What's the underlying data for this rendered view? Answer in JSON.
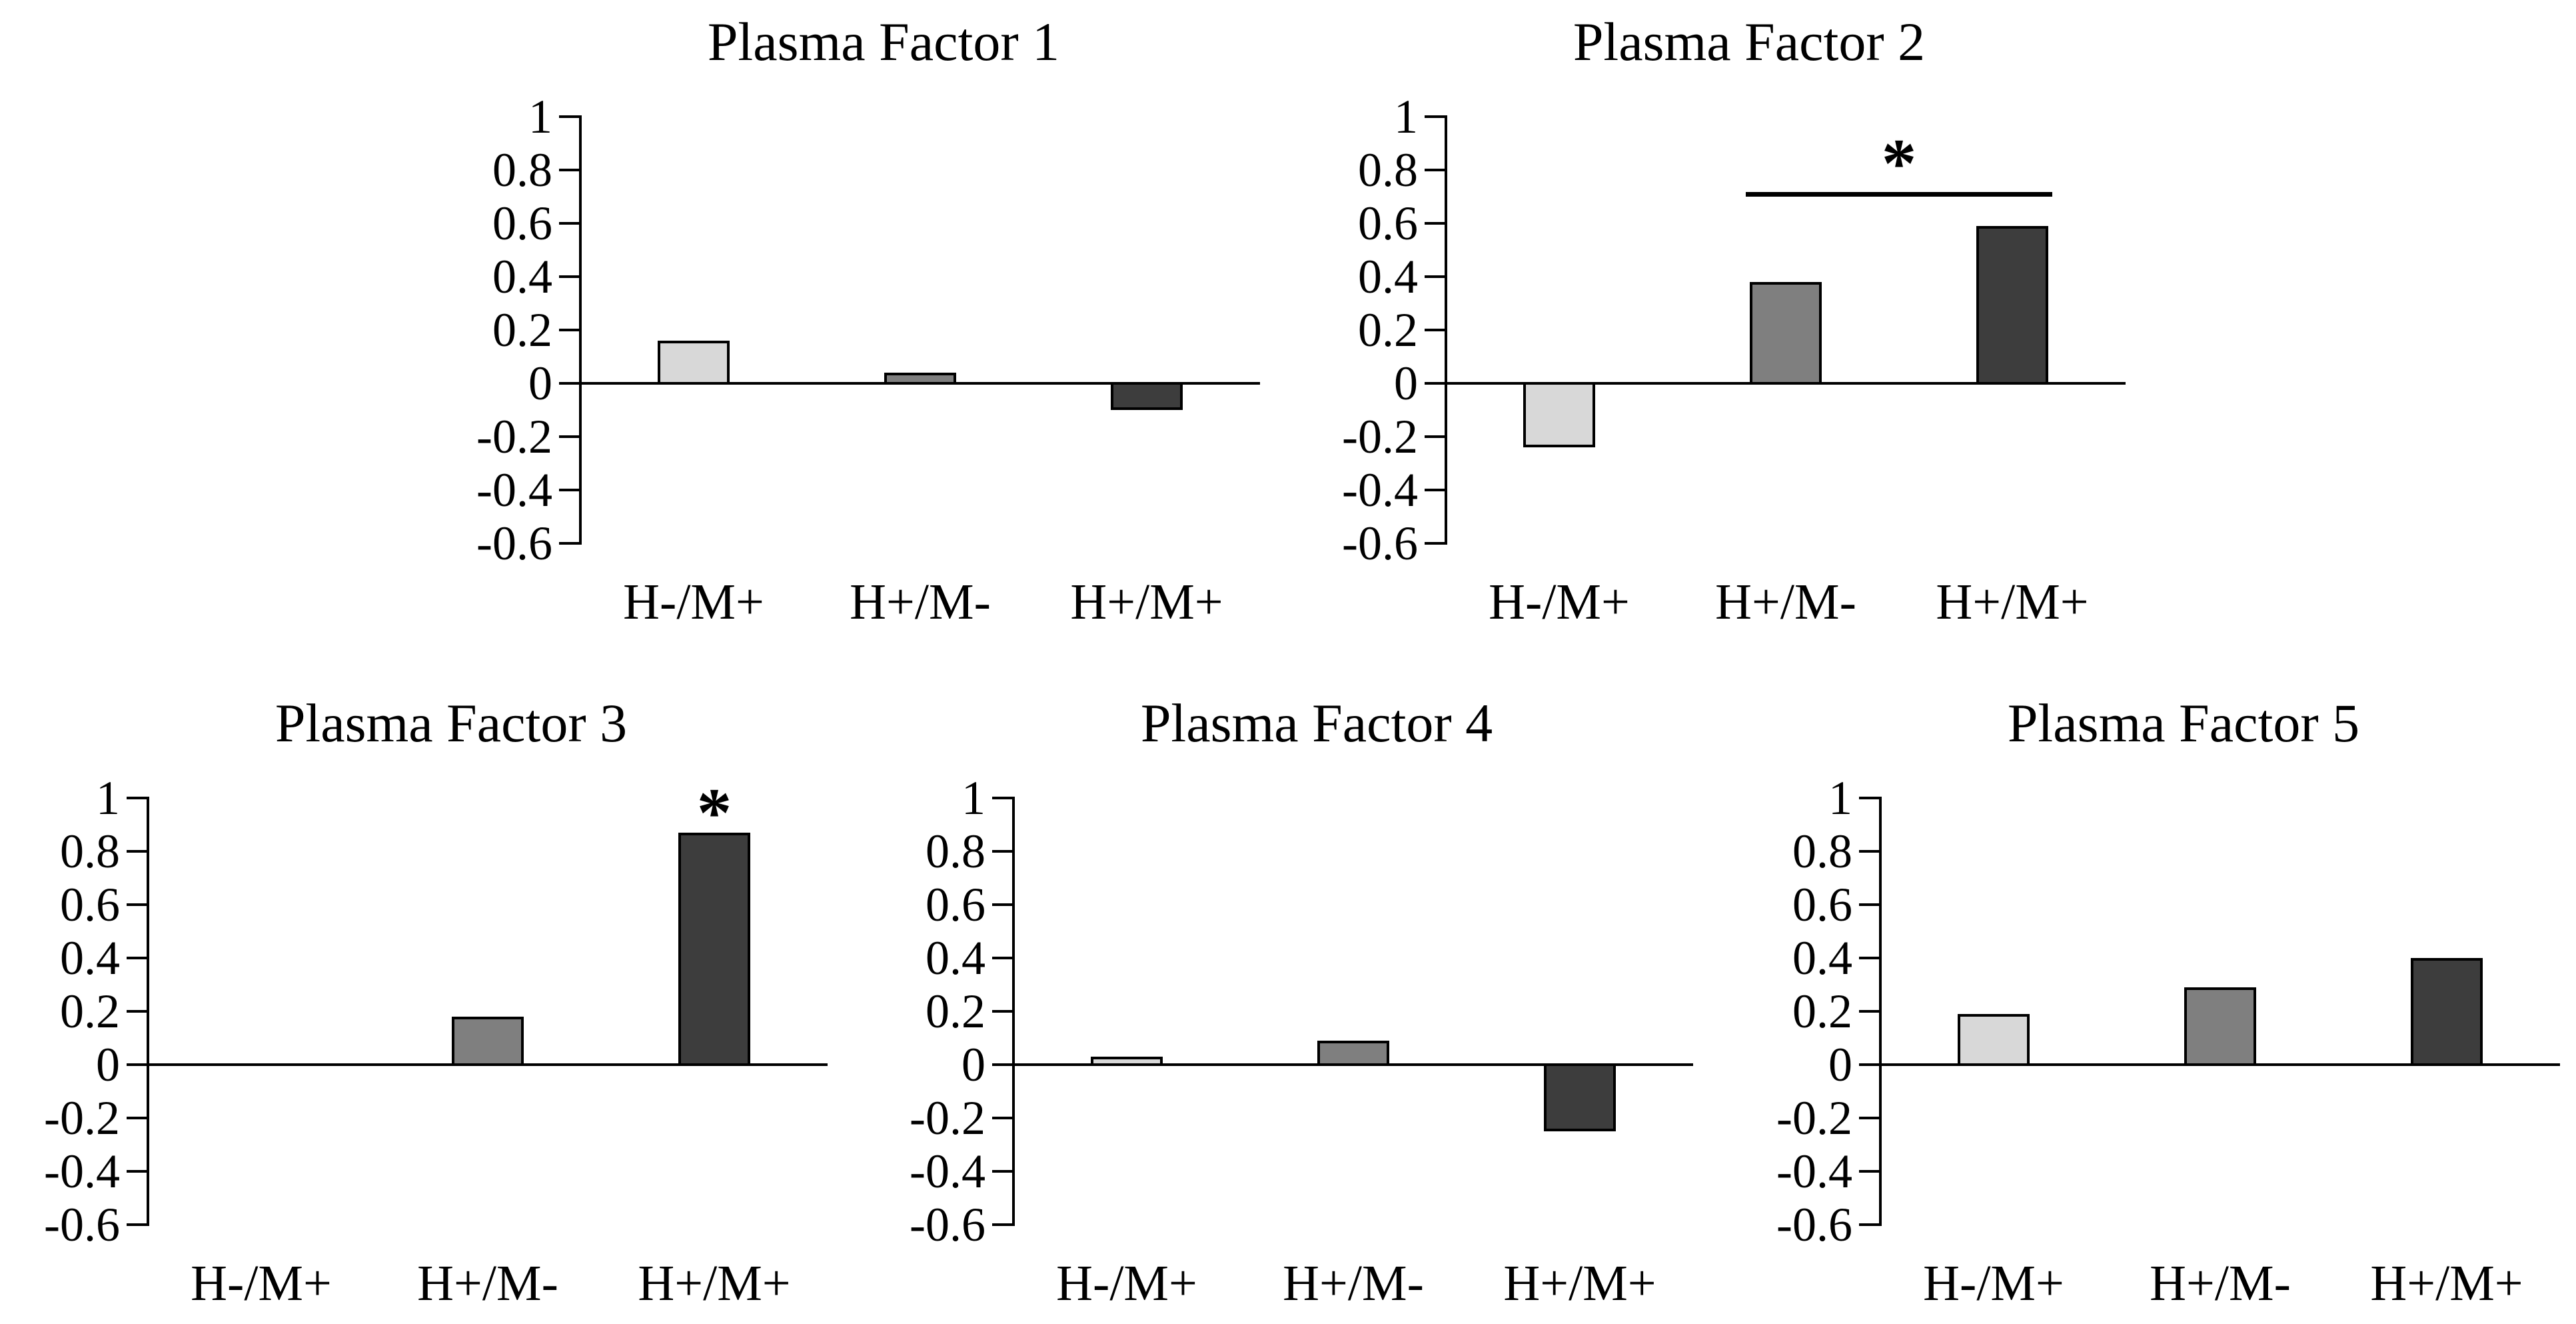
{
  "page": {
    "background": "#ffffff",
    "text_color": "#000000",
    "axis_color": "#000000"
  },
  "chart_data": [
    {
      "type": "bar",
      "title": "Plasma Factor 1",
      "categories": [
        "H-/M+",
        "H+/M-",
        "H+/M+"
      ],
      "values": [
        0.16,
        0.04,
        -0.1
      ],
      "bar_colors": [
        "#d8d8d8",
        "#7f7f7f",
        "#3d3d3d"
      ],
      "ylim": [
        -0.6,
        1
      ],
      "yticks": [
        "1",
        "0.8",
        "0.6",
        "0.4",
        "0.2",
        "0",
        "-0.2",
        "-0.4",
        "-0.6"
      ],
      "grid": false,
      "legend": null,
      "significance": null
    },
    {
      "type": "bar",
      "title": "Plasma Factor 2",
      "categories": [
        "H-/M+",
        "H+/M-",
        "H+/M+"
      ],
      "values": [
        -0.24,
        0.38,
        0.59
      ],
      "bar_colors": [
        "#d8d8d8",
        "#7f7f7f",
        "#3d3d3d"
      ],
      "ylim": [
        -0.6,
        1
      ],
      "yticks": [
        "1",
        "0.8",
        "0.6",
        "0.4",
        "0.2",
        "0",
        "-0.2",
        "-0.4",
        "-0.6"
      ],
      "grid": false,
      "legend": null,
      "significance": {
        "style": "line-with-star",
        "label": "*",
        "between_categories": [
          "H+/M-",
          "H+/M+"
        ],
        "line_value": 0.71,
        "star_value": 0.85
      }
    },
    {
      "type": "bar",
      "title": "Plasma Factor 3",
      "categories": [
        "H-/M+",
        "H+/M-",
        "H+/M+"
      ],
      "values": [
        0,
        0.18,
        0.87
      ],
      "bar_colors": [
        "#d8d8d8",
        "#7f7f7f",
        "#3d3d3d"
      ],
      "ylim": [
        -0.6,
        1
      ],
      "yticks": [
        "1",
        "0.8",
        "0.6",
        "0.4",
        "0.2",
        "0",
        "-0.2",
        "-0.4",
        "-0.6"
      ],
      "grid": false,
      "legend": null,
      "significance": {
        "style": "star-above-bar",
        "label": "*",
        "category": "H+/M+",
        "star_value": 0.97
      }
    },
    {
      "type": "bar",
      "title": "Plasma Factor 4",
      "categories": [
        "H-/M+",
        "H+/M-",
        "H+/M+"
      ],
      "values": [
        0.03,
        0.09,
        -0.25
      ],
      "bar_colors": [
        "#d8d8d8",
        "#7f7f7f",
        "#3d3d3d"
      ],
      "ylim": [
        -0.6,
        1
      ],
      "yticks": [
        "1",
        "0.8",
        "0.6",
        "0.4",
        "0.2",
        "0",
        "-0.2",
        "-0.4",
        "-0.6"
      ],
      "grid": false,
      "legend": null,
      "significance": null
    },
    {
      "type": "bar",
      "title": "Plasma Factor 5",
      "categories": [
        "H-/M+",
        "H+/M-",
        "H+/M+"
      ],
      "values": [
        0.19,
        0.29,
        0.4
      ],
      "bar_colors": [
        "#d8d8d8",
        "#7f7f7f",
        "#3d3d3d"
      ],
      "ylim": [
        -0.6,
        1
      ],
      "yticks": [
        "1",
        "0.8",
        "0.6",
        "0.4",
        "0.2",
        "0",
        "-0.2",
        "-0.4",
        "-0.6"
      ],
      "grid": false,
      "legend": null,
      "significance": null
    }
  ]
}
